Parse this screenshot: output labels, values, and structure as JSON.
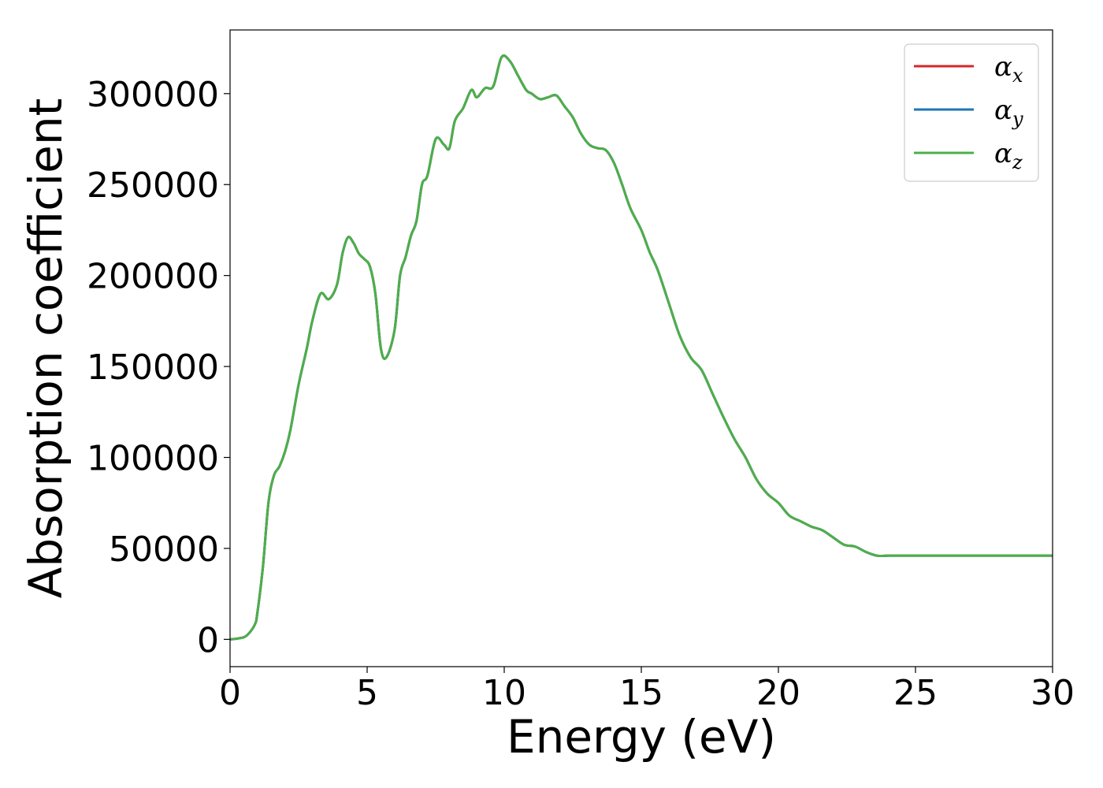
{
  "chart_data": {
    "type": "line",
    "title": "",
    "xlabel": "Energy (eV)",
    "ylabel": "Absorption coefficient",
    "xlim": [
      0,
      30
    ],
    "ylim": [
      -15000,
      335000
    ],
    "xticks": [
      0,
      5,
      10,
      15,
      20,
      25,
      30
    ],
    "xtick_labels": [
      "0",
      "5",
      "10",
      "15",
      "20",
      "25",
      "30"
    ],
    "yticks": [
      0,
      50000,
      100000,
      150000,
      200000,
      250000,
      300000
    ],
    "ytick_labels": [
      "0",
      "50000",
      "100000",
      "150000",
      "200000",
      "250000",
      "300000"
    ],
    "grid": false,
    "legend_position": "top-right",
    "x": [
      0,
      0.3,
      0.6,
      0.9,
      1.0,
      1.2,
      1.4,
      1.6,
      1.8,
      2.0,
      2.2,
      2.5,
      2.8,
      3.0,
      3.3,
      3.6,
      3.9,
      4.1,
      4.3,
      4.5,
      4.7,
      4.9,
      5.1,
      5.3,
      5.5,
      5.7,
      6.0,
      6.2,
      6.4,
      6.6,
      6.8,
      7.0,
      7.2,
      7.5,
      7.8,
      8.0,
      8.2,
      8.5,
      8.8,
      9.0,
      9.3,
      9.6,
      9.9,
      10.2,
      10.5,
      10.8,
      11.0,
      11.3,
      11.6,
      11.9,
      12.2,
      12.5,
      12.8,
      13.1,
      13.4,
      13.7,
      14.0,
      14.3,
      14.6,
      15.0,
      15.3,
      15.6,
      16.0,
      16.4,
      16.8,
      17.2,
      17.6,
      18.0,
      18.4,
      18.8,
      19.2,
      19.6,
      20.0,
      20.4,
      20.8,
      21.2,
      21.6,
      22.0,
      22.4,
      22.8,
      23.2,
      23.6,
      24.0,
      24.4,
      24.8,
      25.2,
      25.6,
      26.0,
      26.4,
      26.8,
      27.2,
      27.6,
      28.0,
      28.4,
      28.8,
      29.2,
      29.6,
      30.0
    ],
    "series": [
      {
        "name": "α_x",
        "legend_base": "α",
        "legend_sub": "x",
        "color": "#d62728",
        "values": [
          0,
          500,
          2000,
          8000,
          15000,
          40000,
          75000,
          90000,
          95000,
          103000,
          115000,
          140000,
          160000,
          175000,
          190000,
          187000,
          195000,
          212000,
          221000,
          218000,
          212000,
          209000,
          205000,
          190000,
          160000,
          155000,
          170000,
          200000,
          210000,
          222000,
          230000,
          250000,
          255000,
          275000,
          272000,
          270000,
          285000,
          292000,
          302000,
          298000,
          303000,
          304000,
          320000,
          318000,
          310000,
          302000,
          300000,
          297000,
          298000,
          299000,
          293000,
          287000,
          278000,
          272000,
          270000,
          269000,
          262000,
          250000,
          237000,
          225000,
          213000,
          203000,
          185000,
          167000,
          155000,
          148000,
          135000,
          122000,
          110000,
          100000,
          88000,
          80000,
          75000,
          68000,
          65000,
          62000,
          60000,
          56000,
          52000,
          51000,
          48000,
          46000,
          46000,
          46000,
          46000,
          46000,
          46000,
          46000,
          46000,
          46000,
          46000,
          46000,
          46000,
          46000,
          46000,
          46000,
          46000,
          46000
        ]
      },
      {
        "name": "α_y",
        "legend_base": "α",
        "legend_sub": "y",
        "color": "#1f77b4",
        "values": [
          0,
          500,
          2000,
          8000,
          15000,
          40000,
          75000,
          90000,
          95000,
          103000,
          115000,
          140000,
          160000,
          175000,
          190000,
          187000,
          195000,
          212000,
          221000,
          218000,
          212000,
          209000,
          205000,
          190000,
          160000,
          155000,
          170000,
          200000,
          210000,
          222000,
          230000,
          250000,
          255000,
          275000,
          272000,
          270000,
          285000,
          292000,
          302000,
          298000,
          303000,
          304000,
          320000,
          318000,
          310000,
          302000,
          300000,
          297000,
          298000,
          299000,
          293000,
          287000,
          278000,
          272000,
          270000,
          269000,
          262000,
          250000,
          237000,
          225000,
          213000,
          203000,
          185000,
          167000,
          155000,
          148000,
          135000,
          122000,
          110000,
          100000,
          88000,
          80000,
          75000,
          68000,
          65000,
          62000,
          60000,
          56000,
          52000,
          51000,
          48000,
          46000,
          46000,
          46000,
          46000,
          46000,
          46000,
          46000,
          46000,
          46000,
          46000,
          46000,
          46000,
          46000,
          46000,
          46000,
          46000,
          46000
        ]
      },
      {
        "name": "α_z",
        "legend_base": "α",
        "legend_sub": "z",
        "color": "#4daf4a",
        "values": [
          0,
          500,
          2000,
          8000,
          15000,
          40000,
          75000,
          90000,
          95000,
          103000,
          115000,
          140000,
          160000,
          175000,
          190000,
          187000,
          195000,
          212000,
          221000,
          218000,
          212000,
          209000,
          205000,
          190000,
          160000,
          155000,
          170000,
          200000,
          210000,
          222000,
          230000,
          250000,
          255000,
          275000,
          272000,
          270000,
          285000,
          292000,
          302000,
          298000,
          303000,
          304000,
          320000,
          318000,
          310000,
          302000,
          300000,
          297000,
          298000,
          299000,
          293000,
          287000,
          278000,
          272000,
          270000,
          269000,
          262000,
          250000,
          237000,
          225000,
          213000,
          203000,
          185000,
          167000,
          155000,
          148000,
          135000,
          122000,
          110000,
          100000,
          88000,
          80000,
          75000,
          68000,
          65000,
          62000,
          60000,
          56000,
          52000,
          51000,
          48000,
          46000,
          46000,
          46000,
          46000,
          46000,
          46000,
          46000,
          46000,
          46000,
          46000,
          46000,
          46000,
          46000,
          46000,
          46000,
          46000,
          46000
        ]
      }
    ]
  }
}
